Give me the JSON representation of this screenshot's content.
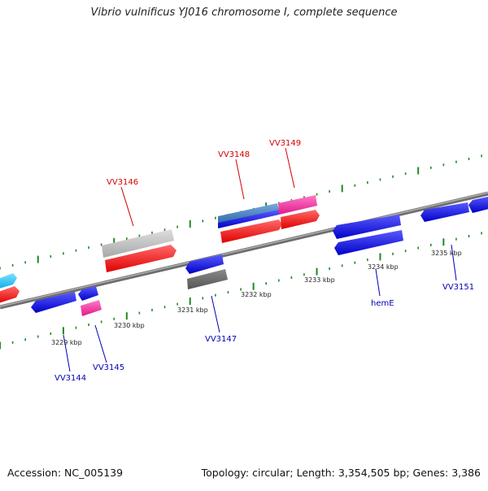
{
  "title": "Vibrio vulnificus YJ016 chromosome I, complete sequence",
  "footer": {
    "accession": "Accession: NC_005139",
    "summary": "Topology: circular; Length: 3,354,505 bp; Genes: 3,386"
  },
  "colors": {
    "backbone": "#8a8a8a",
    "dots": "#1f8a1f",
    "forward_label": "#d40000",
    "reverse_label": "#0000b4",
    "red_gene": "#ff1a1a",
    "blue_gene": "#1a1aff",
    "pink_gene": "#ff3aa8",
    "gray_gene": "#bdbdbd",
    "dark_gray_gene": "#6b6b6b",
    "cyan_gene": "#19c6ff",
    "steel_gene": "#4a86c8"
  },
  "ticks": [
    "3229 kbp",
    "3230 kbp",
    "3231 kbp",
    "3232 kbp",
    "3233 kbp",
    "3234 kbp",
    "3235 kbp"
  ],
  "forward_labels": [
    "VV3146",
    "VV3148",
    "VV3149"
  ],
  "reverse_labels": [
    "VV3144",
    "VV3145",
    "VV3147",
    "hemE",
    "VV3151"
  ]
}
